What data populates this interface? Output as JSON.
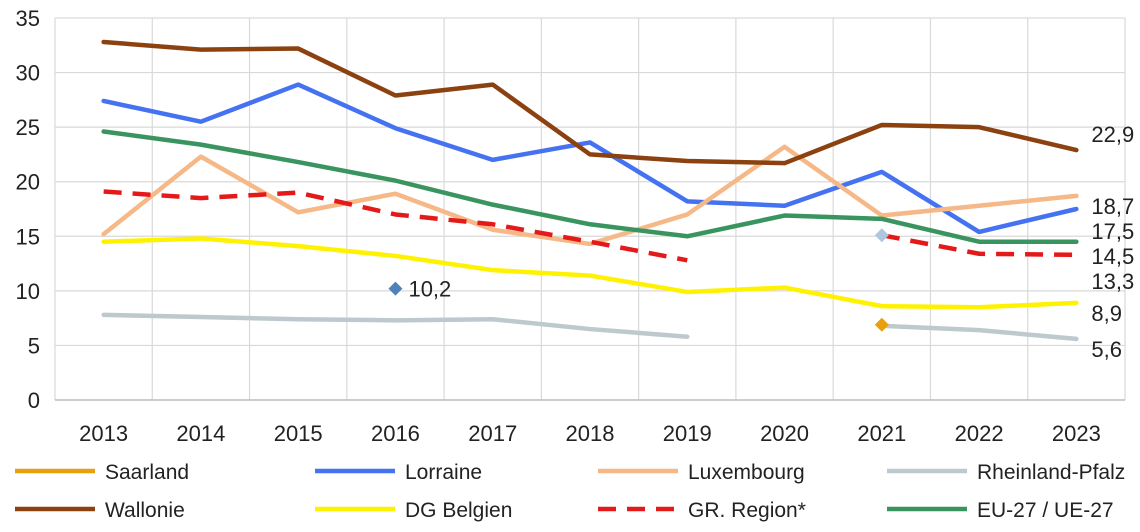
{
  "chart_data": {
    "type": "line",
    "categories": [
      "2013",
      "2014",
      "2015",
      "2016",
      "2017",
      "2018",
      "2019",
      "2020",
      "2021",
      "2022",
      "2023"
    ],
    "ylim": [
      0,
      35
    ],
    "yticks": [
      0,
      5,
      10,
      15,
      20,
      25,
      30,
      35
    ],
    "grid": true,
    "legend_position": "bottom",
    "series": [
      {
        "name": "Saarland",
        "color": "#E8A010",
        "style": "solid",
        "marker": "diamond",
        "values": [
          null,
          null,
          null,
          null,
          null,
          null,
          null,
          null,
          6.9,
          null,
          null
        ]
      },
      {
        "name": "Lorraine",
        "color": "#4472F0",
        "style": "solid",
        "values": [
          27.4,
          25.5,
          28.9,
          24.9,
          22.0,
          23.6,
          18.2,
          17.8,
          20.9,
          15.4,
          17.5
        ]
      },
      {
        "name": "Luxembourg",
        "color": "#F5B886",
        "style": "solid",
        "values": [
          15.2,
          22.3,
          17.2,
          18.9,
          15.6,
          14.3,
          17.0,
          23.2,
          16.9,
          17.8,
          18.7
        ]
      },
      {
        "name": "Rheinland-Pfalz",
        "color": "#BDC9CC",
        "style": "solid",
        "values": [
          7.8,
          7.6,
          7.4,
          7.3,
          7.4,
          6.5,
          5.8,
          null,
          6.8,
          6.4,
          5.6
        ]
      },
      {
        "name": "Wallonie",
        "color": "#8B4210",
        "style": "solid",
        "values": [
          32.8,
          32.1,
          32.2,
          27.9,
          28.9,
          22.5,
          21.9,
          21.7,
          25.2,
          25.0,
          22.9
        ]
      },
      {
        "name": "DG Belgien",
        "color": "#FFF200",
        "style": "solid",
        "values": [
          14.5,
          14.8,
          14.1,
          13.2,
          11.9,
          11.4,
          9.9,
          10.3,
          8.6,
          8.5,
          8.9
        ]
      },
      {
        "name": "GR. Region*",
        "color": "#E41A1A",
        "style": "dashed",
        "values": [
          19.1,
          18.5,
          19.0,
          17.0,
          16.1,
          14.5,
          12.8,
          null,
          15.1,
          13.4,
          13.3
        ]
      },
      {
        "name": "EU-27 / UE-27",
        "color": "#3A9460",
        "style": "solid",
        "values": [
          24.6,
          23.4,
          21.8,
          20.1,
          17.9,
          16.1,
          15.0,
          16.9,
          16.6,
          14.5,
          14.5
        ]
      }
    ],
    "extra_points": [
      {
        "x": "2016",
        "value": 10.2,
        "color": "#4F81BD",
        "label": "10,2"
      },
      {
        "x": "2021",
        "value": 15.1,
        "color": "#AFC6E0",
        "label": ""
      }
    ],
    "end_labels": [
      {
        "value": 22.9,
        "text": "22,9"
      },
      {
        "value": 18.7,
        "text": "18,7"
      },
      {
        "value": 17.5,
        "text": "17,5"
      },
      {
        "value": 14.5,
        "text": "14,5"
      },
      {
        "value": 13.3,
        "text": "13,3"
      },
      {
        "value": 8.9,
        "text": "8,9"
      },
      {
        "value": 5.6,
        "text": "5,6"
      }
    ]
  }
}
